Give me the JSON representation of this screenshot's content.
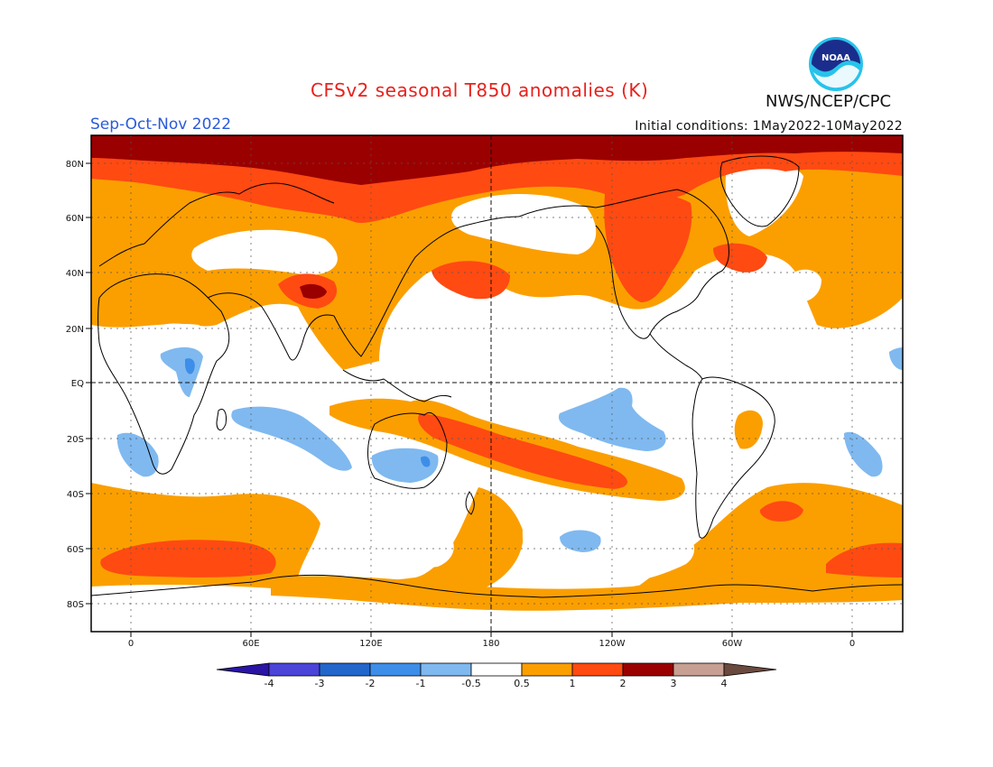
{
  "header": {
    "title": "CFSv2 seasonal T850 anomalies (K)",
    "season": "Sep-Oct-Nov 2022",
    "initial_conditions": "Initial conditions: 1May2022-10May2022",
    "agency": "NWS/NCEP/CPC",
    "logo_text": "NOAA"
  },
  "map": {
    "lat_labels": [
      "80N",
      "60N",
      "40N",
      "20N",
      "EQ",
      "20S",
      "40S",
      "60S",
      "80S"
    ],
    "lon_labels": [
      "0",
      "60E",
      "120E",
      "180",
      "120W",
      "60W",
      "0"
    ]
  },
  "colorbar": {
    "labels": [
      "-4",
      "-3",
      "-2",
      "-1",
      "-0.5",
      "0.5",
      "1",
      "2",
      "3",
      "4"
    ],
    "colors": [
      "#2a14a6",
      "#4a44d8",
      "#2266cc",
      "#3d8ee8",
      "#7fb9f0",
      "#ffffff",
      "#fb9f00",
      "#ff4a12",
      "#9a0000",
      "#c8a093",
      "#6a4a3e"
    ]
  },
  "colors": {
    "title": "#e8211c",
    "season": "#2a5bd8",
    "warm_1": "#fb9f00",
    "warm_2": "#ff4a12",
    "warm_3": "#9a0000",
    "cool_1": "#7fb9f0",
    "cool_2": "#3d8ee8"
  }
}
